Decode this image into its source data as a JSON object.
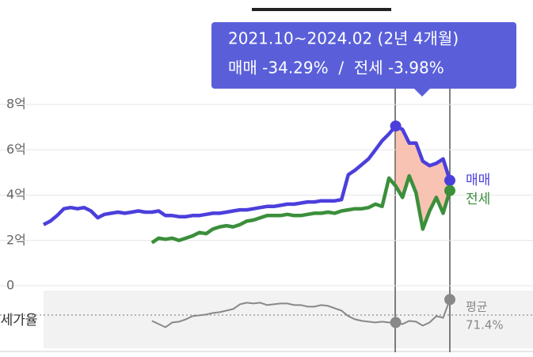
{
  "chart_data": [
    {
      "type": "line",
      "tooltip": {
        "period": "2021.10~2024.02 (2년 4개월)",
        "change": "매매 -34.29%  /  전세 -3.98%"
      },
      "ylim": [
        0,
        8
      ],
      "yticks": [
        0,
        {
          "value": 2,
          "label": "2억"
        },
        {
          "value": 4,
          "label": "4억"
        },
        {
          "value": 6,
          "label": "6억"
        },
        {
          "value": 8,
          "label": "8억"
        }
      ],
      "grid": true,
      "series": [
        {
          "name": "매매",
          "color": "#4b3fdc",
          "values": [
            2.7,
            2.85,
            3.1,
            3.4,
            3.45,
            3.4,
            3.45,
            3.3,
            3.0,
            3.15,
            3.2,
            3.25,
            3.2,
            3.25,
            3.3,
            3.25,
            3.25,
            3.3,
            3.1,
            3.1,
            3.05,
            3.05,
            3.1,
            3.1,
            3.15,
            3.2,
            3.2,
            3.25,
            3.3,
            3.35,
            3.35,
            3.4,
            3.45,
            3.5,
            3.5,
            3.55,
            3.6,
            3.6,
            3.65,
            3.7,
            3.7,
            3.75,
            3.75,
            3.75,
            3.8,
            4.9,
            5.1,
            5.35,
            5.6,
            6.0,
            6.4,
            6.7,
            7.05,
            6.9,
            6.3,
            6.3,
            5.5,
            5.3,
            5.4,
            5.6,
            4.65
          ]
        },
        {
          "name": "전세",
          "color": "#3b8f3b",
          "values": [
            null,
            null,
            null,
            null,
            null,
            null,
            null,
            null,
            null,
            null,
            null,
            null,
            null,
            null,
            null,
            null,
            1.9,
            2.1,
            2.05,
            2.1,
            2.0,
            2.1,
            2.2,
            2.35,
            2.3,
            2.5,
            2.6,
            2.65,
            2.6,
            2.7,
            2.85,
            2.9,
            3.0,
            3.1,
            3.1,
            3.1,
            3.15,
            3.1,
            3.1,
            3.15,
            3.2,
            3.2,
            3.25,
            3.2,
            3.3,
            3.35,
            3.4,
            3.4,
            3.45,
            3.6,
            3.5,
            4.75,
            4.4,
            3.9,
            4.85,
            4.1,
            2.5,
            3.3,
            3.9,
            3.2,
            4.2
          ]
        }
      ]
    },
    {
      "type": "line",
      "label": "전세가율",
      "color": "#888888",
      "values": [
        null,
        null,
        null,
        null,
        null,
        null,
        null,
        null,
        null,
        null,
        null,
        null,
        null,
        null,
        null,
        null,
        64,
        60,
        56,
        62,
        63,
        66,
        70,
        71,
        72,
        74,
        75,
        77,
        79,
        85,
        87,
        86,
        87,
        84,
        85,
        86,
        86,
        84,
        84,
        82,
        82,
        84,
        83,
        80,
        77,
        70,
        66,
        64,
        63,
        62,
        63,
        62,
        62,
        60,
        64,
        63,
        58,
        62,
        70,
        68,
        91
      ],
      "average": {
        "label": "평균",
        "value": 71.4,
        "value_label": "71.4%"
      }
    }
  ]
}
